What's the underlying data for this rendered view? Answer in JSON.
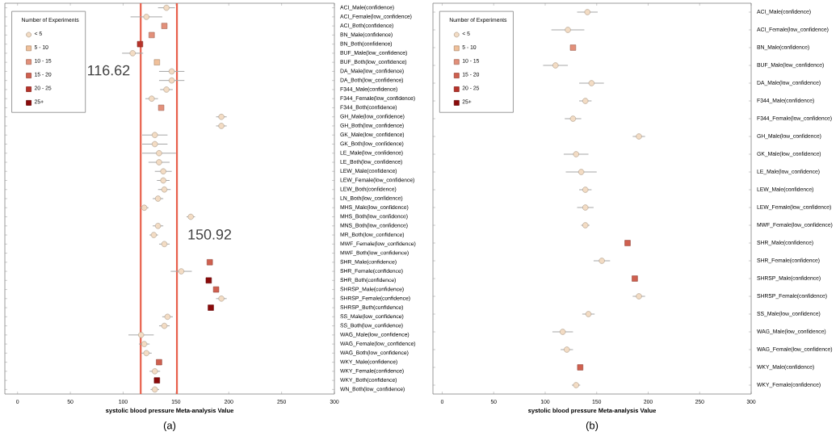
{
  "chart_data": [
    {
      "type": "scatter",
      "orientation": "horizontal",
      "legend": "top left",
      "legend_title": "Number of Experiments",
      "xlabel": "systolic blood pressure Meta-analysis Value",
      "xlim": [
        -12,
        300
      ],
      "xticks": [
        0,
        50,
        100,
        150,
        200,
        250,
        300
      ],
      "categories": [
        "ACI_Male(confidence)",
        "ACI_Female(low_confidence)",
        "ACI_Both(confidence)",
        "BN_Male(confidence)",
        "BN_Both(confidence)",
        "BUF_Male(low_confidence)",
        "BUF_Both(low_confidence)",
        "DA_Male(low_confidence)",
        "DA_Both(low_confidence)",
        "F344_Male(confidence)",
        "F344_Female(low_confidence)",
        "F344_Both(confidence)",
        "GH_Male(low_confidence)",
        "GH_Both(low_confidence)",
        "GK_Male(low_confidence)",
        "GK_Both(low_confidence)",
        "LE_Male(low_confidence)",
        "LE_Both(low_confidence)",
        "LEW_Male(confidence)",
        "LEW_Female(low_confidence)",
        "LEW_Both(confidence)",
        "LN_Both(low_confidence)",
        "MHS_Male(low_confidence)",
        "MHS_Both(low_confidence)",
        "MNS_Both(low_confidence)",
        "MR_Both(low_confidence)",
        "MWF_Female(low_confidence)",
        "MWF_Both(low_confidence)",
        "SHR_Male(confidence)",
        "SHR_Female(confidence)",
        "SHR_Both(confidence)",
        "SHRSP_Male(confidence)",
        "SHRSP_Female(confidence)",
        "SHRSP_Both(confidence)",
        "SS_Male(low_confidence)",
        "SS_Both(low_confidence)",
        "WAG_Male(low_confidence)",
        "WAG_Female(low_confidence)",
        "WAG_Both(low_confidence)",
        "WKY_Male(confidence)",
        "WKY_Female(confidence)",
        "WKY_Both(confidence)",
        "WN_Both(low_confidence)"
      ],
      "series": [
        {
          "name": "< 5",
          "color": "#f3dcc4",
          "marker": "circle",
          "values": [
            141,
            122,
            null,
            null,
            null,
            109,
            null,
            146,
            146,
            141,
            127,
            null,
            193,
            193,
            130,
            130,
            134,
            134,
            138,
            138,
            139,
            133,
            120,
            164,
            133,
            129,
            139,
            null,
            null,
            155,
            null,
            null,
            193,
            null,
            142,
            139,
            117,
            120,
            122,
            null,
            130,
            null,
            130
          ],
          "errors": [
            8,
            15,
            null,
            null,
            null,
            10,
            null,
            12,
            12,
            6,
            6,
            null,
            5,
            5,
            12,
            12,
            16,
            10,
            8,
            6,
            6,
            5,
            4,
            4,
            5,
            4,
            5,
            null,
            null,
            10,
            null,
            null,
            5,
            null,
            5,
            5,
            12,
            5,
            5,
            null,
            5,
            null,
            4
          ]
        },
        {
          "name": "5 - 10",
          "color": "#f0c09a",
          "marker": "square",
          "values": [
            null,
            null,
            null,
            null,
            null,
            null,
            132,
            null,
            null,
            null,
            null,
            null,
            null,
            null,
            null,
            null,
            null,
            null,
            null,
            null,
            null,
            null,
            null,
            null,
            null,
            null,
            null,
            null,
            null,
            null,
            null,
            null,
            null,
            null,
            null,
            null,
            null,
            null,
            null,
            null,
            null,
            null,
            null
          ]
        },
        {
          "name": "10 - 15",
          "color": "#e3907a",
          "marker": "square",
          "values": [
            null,
            null,
            139,
            127,
            null,
            null,
            null,
            null,
            null,
            null,
            null,
            136,
            null,
            null,
            null,
            null,
            null,
            null,
            null,
            null,
            null,
            null,
            null,
            null,
            null,
            null,
            null,
            null,
            null,
            null,
            null,
            null,
            null,
            null,
            null,
            null,
            null,
            null,
            null,
            null,
            null,
            null,
            null
          ]
        },
        {
          "name": "15 - 20",
          "color": "#d0604f",
          "marker": "square",
          "values": [
            null,
            null,
            null,
            null,
            null,
            null,
            null,
            null,
            null,
            null,
            null,
            null,
            null,
            null,
            null,
            null,
            null,
            null,
            null,
            null,
            null,
            null,
            null,
            null,
            null,
            null,
            null,
            null,
            182,
            null,
            null,
            188,
            null,
            null,
            null,
            null,
            null,
            null,
            null,
            134,
            null,
            null,
            null
          ]
        },
        {
          "name": "20 - 25",
          "color": "#b8332a",
          "marker": "square",
          "values": [
            null,
            null,
            null,
            null,
            116,
            null,
            null,
            null,
            null,
            null,
            null,
            null,
            null,
            null,
            null,
            null,
            null,
            null,
            null,
            null,
            null,
            null,
            null,
            null,
            null,
            null,
            null,
            null,
            null,
            null,
            null,
            null,
            null,
            null,
            null,
            null,
            null,
            null,
            null,
            null,
            null,
            null,
            null
          ]
        },
        {
          "name": "25+",
          "color": "#8b0a0a",
          "marker": "square",
          "values": [
            null,
            null,
            null,
            null,
            null,
            null,
            null,
            null,
            null,
            null,
            null,
            null,
            null,
            null,
            null,
            null,
            null,
            null,
            null,
            null,
            null,
            null,
            null,
            null,
            null,
            null,
            null,
            null,
            null,
            null,
            181,
            null,
            null,
            183,
            null,
            null,
            null,
            null,
            null,
            null,
            null,
            132,
            null
          ]
        }
      ],
      "ref_lines": [
        {
          "axis": "x",
          "value": 116.62,
          "label": "116.62",
          "color": "#e8604c"
        },
        {
          "axis": "x",
          "value": 150.92,
          "label": "150.92",
          "color": "#e8604c"
        }
      ],
      "annotations": [
        "(a)"
      ]
    },
    {
      "type": "scatter",
      "orientation": "horizontal",
      "legend": "top left",
      "legend_title": "Number of Experiments",
      "xlabel": "systolic blood pressure Meta-analysis Value",
      "xlim": [
        -9,
        300
      ],
      "xticks": [
        0,
        50,
        100,
        150,
        200,
        250,
        300
      ],
      "categories": [
        "ACI_Male(confidence)",
        "ACI_Female(low_confidence)",
        "BN_Male(confidence)",
        "BUF_Male(low_confidence)",
        "DA_Male(low_confidence)",
        "F344_Male(confidence)",
        "F344_Female(low_confidence)",
        "GH_Male(low_confidence)",
        "GK_Male(low_confidence)",
        "LE_Male(low_confidence)",
        "LEW_Male(confidence)",
        "LEW_Female(low_confidence)",
        "MWF_Female(low_confidence)",
        "SHR_Male(confidence)",
        "SHR_Female(confidence)",
        "SHRSP_Male(confidence)",
        "SHRSP_Female(confidence)",
        "SS_Male(low_confidence)",
        "WAG_Male(low_confidence)",
        "WAG_Female(low_confidence)",
        "WKY_Male(confidence)",
        "WKY_Female(confidence)"
      ],
      "series": [
        {
          "name": "< 5",
          "color": "#f3dcc4",
          "marker": "circle",
          "values": [
            141,
            122,
            null,
            110,
            145,
            139,
            127,
            191,
            130,
            135,
            139,
            139,
            139,
            null,
            155,
            null,
            191,
            142,
            117,
            121,
            null,
            130
          ],
          "errors": [
            10,
            16,
            null,
            12,
            12,
            6,
            8,
            6,
            12,
            15,
            6,
            8,
            4,
            null,
            8,
            null,
            6,
            6,
            10,
            6,
            null,
            4
          ]
        },
        {
          "name": "5 - 10",
          "color": "#f0c09a",
          "marker": "square",
          "values": [
            null,
            null,
            null,
            null,
            null,
            null,
            null,
            null,
            null,
            null,
            null,
            null,
            null,
            null,
            null,
            null,
            null,
            null,
            null,
            null,
            null,
            null
          ]
        },
        {
          "name": "10 - 15",
          "color": "#e3907a",
          "marker": "square",
          "values": [
            null,
            null,
            127,
            null,
            null,
            null,
            null,
            null,
            null,
            null,
            null,
            null,
            null,
            null,
            null,
            null,
            null,
            null,
            null,
            null,
            null,
            null
          ]
        },
        {
          "name": "15 - 20",
          "color": "#d0604f",
          "marker": "square",
          "values": [
            null,
            null,
            null,
            null,
            null,
            null,
            null,
            null,
            null,
            null,
            null,
            null,
            null,
            180,
            null,
            187,
            null,
            null,
            null,
            null,
            134,
            null
          ]
        },
        {
          "name": "20 - 25",
          "color": "#b8332a",
          "marker": "square",
          "values": [
            null,
            null,
            null,
            null,
            null,
            null,
            null,
            null,
            null,
            null,
            null,
            null,
            null,
            null,
            null,
            null,
            null,
            null,
            null,
            null,
            null,
            null
          ]
        },
        {
          "name": "25+",
          "color": "#8b0a0a",
          "marker": "square",
          "values": [
            null,
            null,
            null,
            null,
            null,
            null,
            null,
            null,
            null,
            null,
            null,
            null,
            null,
            null,
            null,
            null,
            null,
            null,
            null,
            null,
            null,
            null
          ]
        }
      ],
      "annotations": [
        "(b)"
      ]
    }
  ]
}
